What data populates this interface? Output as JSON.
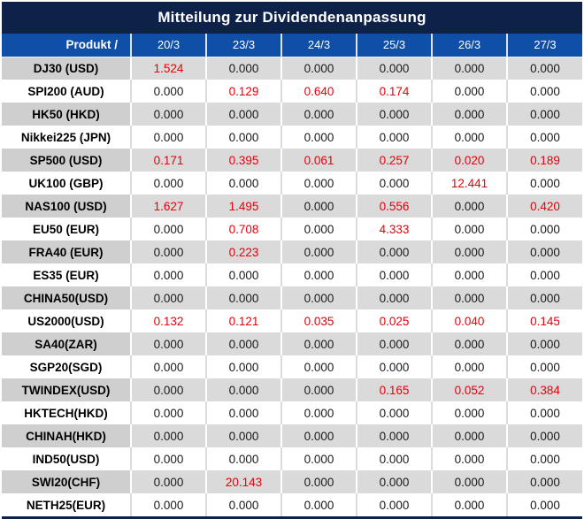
{
  "colors": {
    "navy": "#0d2149",
    "header-blue": "#0f4fa8",
    "row-gray": "#dadada",
    "label-gray": "#d0cfcf",
    "value-red": "#e8000a",
    "value-black": "#1a1a1a",
    "header-divider": "#dde4f0",
    "white-row-divider": "#dcdcdc"
  },
  "title_bar": {
    "title": "Mitteilung zur Dividendenanpassung"
  },
  "chart_data": {
    "type": "table",
    "title": "Mitteilung zur Dividendenanpassung",
    "header": {
      "product_label": "Produkt /",
      "dates": [
        "20/3",
        "23/3",
        "24/3",
        "25/3",
        "26/3",
        "27/3"
      ]
    },
    "rows": [
      {
        "product": "DJ30 (USD)",
        "values": [
          "1.524",
          "0.000",
          "0.000",
          "0.000",
          "0.000",
          "0.000"
        ]
      },
      {
        "product": "SPI200 (AUD)",
        "values": [
          "0.000",
          "0.129",
          "0.640",
          "0.174",
          "0.000",
          "0.000"
        ]
      },
      {
        "product": "HK50 (HKD)",
        "values": [
          "0.000",
          "0.000",
          "0.000",
          "0.000",
          "0.000",
          "0.000"
        ]
      },
      {
        "product": "Nikkei225 (JPN)",
        "values": [
          "0.000",
          "0.000",
          "0.000",
          "0.000",
          "0.000",
          "0.000"
        ]
      },
      {
        "product": "SP500 (USD)",
        "values": [
          "0.171",
          "0.395",
          "0.061",
          "0.257",
          "0.020",
          "0.189"
        ]
      },
      {
        "product": "UK100 (GBP)",
        "values": [
          "0.000",
          "0.000",
          "0.000",
          "0.000",
          "12.441",
          "0.000"
        ]
      },
      {
        "product": "NAS100 (USD)",
        "values": [
          "1.627",
          "1.495",
          "0.000",
          "0.556",
          "0.000",
          "0.420"
        ]
      },
      {
        "product": "EU50 (EUR)",
        "values": [
          "0.000",
          "0.708",
          "0.000",
          "4.333",
          "0.000",
          "0.000"
        ]
      },
      {
        "product": "FRA40 (EUR)",
        "values": [
          "0.000",
          "0.223",
          "0.000",
          "0.000",
          "0.000",
          "0.000"
        ]
      },
      {
        "product": "ES35 (EUR)",
        "values": [
          "0.000",
          "0.000",
          "0.000",
          "0.000",
          "0.000",
          "0.000"
        ]
      },
      {
        "product": "CHINA50(USD)",
        "values": [
          "0.000",
          "0.000",
          "0.000",
          "0.000",
          "0.000",
          "0.000"
        ]
      },
      {
        "product": "US2000(USD)",
        "values": [
          "0.132",
          "0.121",
          "0.035",
          "0.025",
          "0.040",
          "0.145"
        ]
      },
      {
        "product": "SA40(ZAR)",
        "values": [
          "0.000",
          "0.000",
          "0.000",
          "0.000",
          "0.000",
          "0.000"
        ]
      },
      {
        "product": "SGP20(SGD)",
        "values": [
          "0.000",
          "0.000",
          "0.000",
          "0.000",
          "0.000",
          "0.000"
        ]
      },
      {
        "product": "TWINDEX(USD)",
        "values": [
          "0.000",
          "0.000",
          "0.000",
          "0.165",
          "0.052",
          "0.384"
        ]
      },
      {
        "product": "HKTECH(HKD)",
        "values": [
          "0.000",
          "0.000",
          "0.000",
          "0.000",
          "0.000",
          "0.000"
        ]
      },
      {
        "product": "CHINAH(HKD)",
        "values": [
          "0.000",
          "0.000",
          "0.000",
          "0.000",
          "0.000",
          "0.000"
        ]
      },
      {
        "product": "IND50(USD)",
        "values": [
          "0.000",
          "0.000",
          "0.000",
          "0.000",
          "0.000",
          "0.000"
        ]
      },
      {
        "product": "SWI20(CHF)",
        "values": [
          "0.000",
          "20.143",
          "0.000",
          "0.000",
          "0.000",
          "0.000"
        ]
      },
      {
        "product": "NETH25(EUR)",
        "values": [
          "0.000",
          "0.000",
          "0.000",
          "0.000",
          "0.000",
          "0.000"
        ]
      }
    ]
  }
}
